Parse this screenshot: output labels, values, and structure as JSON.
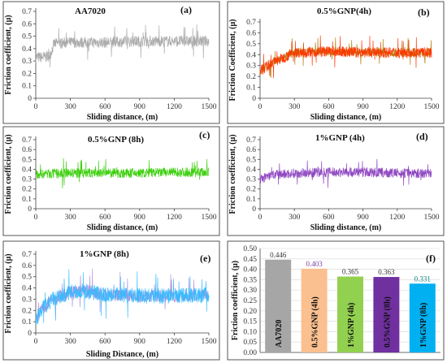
{
  "chart_data": [
    {
      "panel": "(a)",
      "type": "line",
      "title": "AA7020",
      "xlabel": "Sliding distance, (m)",
      "ylabel": "Friction coefficient, (μ)",
      "xlim": [
        0,
        1500
      ],
      "xticks": [
        "0",
        "300",
        "600",
        "900",
        "1200",
        "1500"
      ],
      "ylim": [
        0,
        0.7
      ],
      "yticks": [
        "0",
        "0.1",
        "0.2",
        "0.3",
        "0.4",
        "0.5",
        "0.6",
        "0.7"
      ],
      "color": "#a6a6a6",
      "series": [
        {
          "x": [
            0,
            60,
            120,
            160,
            300,
            600,
            900,
            1200,
            1500
          ],
          "mean": [
            0.33,
            0.33,
            0.34,
            0.44,
            0.45,
            0.45,
            0.46,
            0.46,
            0.46
          ],
          "noise": 0.045
        }
      ],
      "grid": false
    },
    {
      "panel": "(b)",
      "type": "line",
      "title": "0.5%GNP(4h)",
      "xlabel": "Sliding distance, (m)",
      "ylabel": "Friction Coefficient, (μ)",
      "xlim": [
        0,
        1500
      ],
      "xticks": [
        "0",
        "300",
        "600",
        "900",
        "1200",
        "1500"
      ],
      "ylim": [
        0,
        0.7
      ],
      "yticks": [
        "0",
        "0.1",
        "0.2",
        "0.3",
        "0.4",
        "0.5",
        "0.6",
        "0.7"
      ],
      "colors": [
        "#ff3300",
        "#b07a00"
      ],
      "series": [
        {
          "x": [
            0,
            100,
            200,
            300,
            600,
            900,
            1200,
            1500
          ],
          "mean": [
            0.25,
            0.32,
            0.37,
            0.42,
            0.43,
            0.42,
            0.42,
            0.42
          ],
          "noise": 0.05
        }
      ],
      "grid": false
    },
    {
      "panel": "(c)",
      "type": "line",
      "title": "0.5%GNP (8h)",
      "xlabel": "Sliding distance, (m)",
      "ylabel": "Friction coefficient, (μ)",
      "xlim": [
        0,
        1500
      ],
      "xticks": [
        "0",
        "300",
        "600",
        "900",
        "1200",
        "1500"
      ],
      "ylim": [
        0,
        0.7
      ],
      "yticks": [
        "0",
        "0.1",
        "0.2",
        "0.3",
        "0.4",
        "0.5",
        "0.6",
        "0.7"
      ],
      "color": "#33cc00",
      "series": [
        {
          "x": [
            0,
            300,
            600,
            900,
            1200,
            1500
          ],
          "mean": [
            0.35,
            0.36,
            0.36,
            0.36,
            0.37,
            0.37
          ],
          "noise": 0.05
        }
      ],
      "grid": false
    },
    {
      "panel": "(d)",
      "type": "line",
      "title": "1%GNP (4h)",
      "xlabel": "Sliding distance, (m)",
      "ylabel": "Friction coefficient, (μ)",
      "xlim": [
        0,
        1500
      ],
      "xticks": [
        "0",
        "300",
        "600",
        "900",
        "1200",
        "1500"
      ],
      "ylim": [
        0,
        0.7
      ],
      "yticks": [
        "0",
        "0.1",
        "0.2",
        "0.3",
        "0.4",
        "0.5",
        "0.6",
        "0.7"
      ],
      "color": "#8a3fbf",
      "series": [
        {
          "x": [
            0,
            100,
            300,
            600,
            900,
            1200,
            1500
          ],
          "mean": [
            0.3,
            0.34,
            0.36,
            0.37,
            0.37,
            0.36,
            0.36
          ],
          "noise": 0.05
        }
      ],
      "grid": false
    },
    {
      "panel": "(e)",
      "type": "line",
      "title": "1%GNP (8h)",
      "xlabel": "Sliding Distance, (m)",
      "ylabel": "Friction coefficient, (μ)",
      "xlim": [
        0,
        1500
      ],
      "xticks": [
        "0",
        "300",
        "600",
        "900",
        "1200",
        "1500"
      ],
      "ylim": [
        0,
        0.7
      ],
      "yticks": [
        "0",
        "0.1",
        "0.2",
        "0.3",
        "0.4",
        "0.5",
        "0.6",
        "0.7"
      ],
      "colors": [
        "#33bbff",
        "#b38cd9"
      ],
      "series": [
        {
          "x": [
            0,
            60,
            150,
            300,
            450,
            600,
            900,
            1200,
            1500
          ],
          "mean": [
            0.12,
            0.22,
            0.3,
            0.36,
            0.37,
            0.34,
            0.33,
            0.33,
            0.34
          ],
          "noise": 0.07
        }
      ],
      "grid": false
    },
    {
      "panel": "(f)",
      "type": "bar",
      "ylabel": "Friction coefficient, (μ)",
      "categories": [
        "AA7020",
        "0.5%GNP (4h)",
        "1%GNP (4h)",
        "0.5%GNP (8h)",
        "1%GNP (8h)"
      ],
      "values": [
        0.446,
        0.403,
        0.365,
        0.363,
        0.331
      ],
      "value_labels": [
        "0.446",
        "0.403",
        "0.365",
        "0.363",
        "0.331"
      ],
      "value_label_colors": [
        "#333333",
        "#7a3fa0",
        "#333333",
        "#333333",
        "#008080"
      ],
      "bar_colors": [
        "#a6a6a6",
        "#fac090",
        "#92d050",
        "#7030a0",
        "#00b0f0"
      ],
      "ylim": [
        0,
        0.5
      ],
      "yticks": [
        "0.00",
        "0.05",
        "0.10",
        "0.15",
        "0.20",
        "0.25",
        "0.30",
        "0.35",
        "0.40",
        "0.45",
        "0.50"
      ],
      "grid": true
    }
  ]
}
